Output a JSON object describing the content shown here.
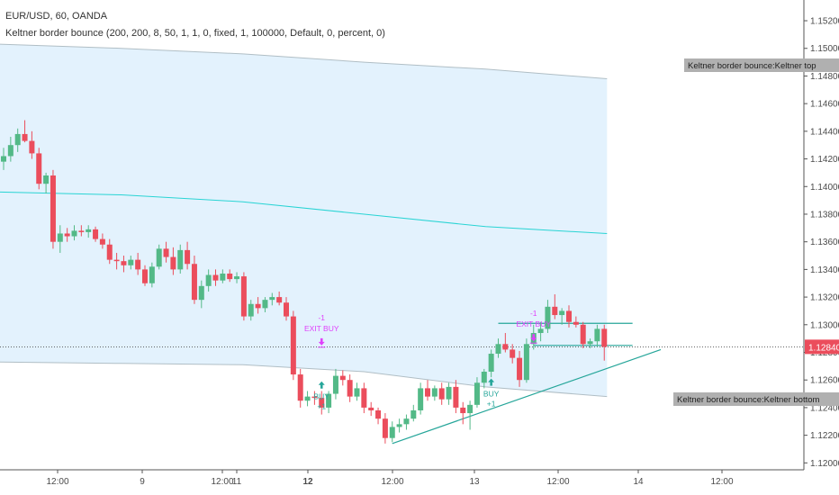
{
  "chart_data": {
    "type": "candlestick",
    "title": "EUR/USD, 60, OANDA",
    "subtitle": "Keltner border bounce (200, 200, 8, 50, 1, 1, 0, fixed, 1, 100000, Default, 0, percent, 0)",
    "ylim": [
      1.1195,
      1.1535
    ],
    "y_ticks": [
      "1.15200",
      "1.15000",
      "1.14800",
      "1.14600",
      "1.14400",
      "1.14200",
      "1.14000",
      "1.13800",
      "1.13600",
      "1.13400",
      "1.13200",
      "1.13000",
      "1.12800",
      "1.12600",
      "1.12400",
      "1.12200",
      "1.12000"
    ],
    "x_ticks": [
      "12:00",
      "9",
      "12:00",
      "11",
      "12",
      "12:00",
      "13",
      "12:00",
      "14",
      "12:00"
    ],
    "x_tick_bold": [
      false,
      false,
      false,
      false,
      true,
      false,
      false,
      false,
      false,
      false
    ],
    "current_price": "1.12840",
    "colors": {
      "up": "#53b987",
      "down": "#eb4d5c",
      "channel": "#29d4d4",
      "band_fill": "#e3f2fd",
      "band_line": "#b0bec5",
      "trend": "#26a69a",
      "buy": "#26a69a",
      "exit": "#e040fb",
      "price_tag": "#eb4d5c"
    },
    "candles": [
      {
        "o": 1.1418,
        "h": 1.1428,
        "l": 1.1412,
        "c": 1.1422
      },
      {
        "o": 1.1422,
        "h": 1.1436,
        "l": 1.1418,
        "c": 1.143
      },
      {
        "o": 1.143,
        "h": 1.1442,
        "l": 1.1425,
        "c": 1.1438
      },
      {
        "o": 1.1438,
        "h": 1.1448,
        "l": 1.1432,
        "c": 1.1433
      },
      {
        "o": 1.1433,
        "h": 1.144,
        "l": 1.142,
        "c": 1.1424
      },
      {
        "o": 1.1424,
        "h": 1.1428,
        "l": 1.1398,
        "c": 1.1402
      },
      {
        "o": 1.1402,
        "h": 1.141,
        "l": 1.1395,
        "c": 1.1408
      },
      {
        "o": 1.1408,
        "h": 1.1412,
        "l": 1.1355,
        "c": 1.136
      },
      {
        "o": 1.136,
        "h": 1.1372,
        "l": 1.1352,
        "c": 1.1366
      },
      {
        "o": 1.1366,
        "h": 1.137,
        "l": 1.136,
        "c": 1.1364
      },
      {
        "o": 1.1364,
        "h": 1.1372,
        "l": 1.1361,
        "c": 1.1368
      },
      {
        "o": 1.1368,
        "h": 1.1372,
        "l": 1.1364,
        "c": 1.1367
      },
      {
        "o": 1.1367,
        "h": 1.1372,
        "l": 1.1363,
        "c": 1.1369
      },
      {
        "o": 1.1369,
        "h": 1.1371,
        "l": 1.136,
        "c": 1.1362
      },
      {
        "o": 1.1362,
        "h": 1.1366,
        "l": 1.1355,
        "c": 1.1358
      },
      {
        "o": 1.1358,
        "h": 1.1362,
        "l": 1.1344,
        "c": 1.1347
      },
      {
        "o": 1.1347,
        "h": 1.1352,
        "l": 1.134,
        "c": 1.1346
      },
      {
        "o": 1.1346,
        "h": 1.135,
        "l": 1.1338,
        "c": 1.1343
      },
      {
        "o": 1.1343,
        "h": 1.135,
        "l": 1.134,
        "c": 1.1347
      },
      {
        "o": 1.1347,
        "h": 1.1352,
        "l": 1.1336,
        "c": 1.134
      },
      {
        "o": 1.134,
        "h": 1.1343,
        "l": 1.1328,
        "c": 1.133
      },
      {
        "o": 1.133,
        "h": 1.1345,
        "l": 1.1327,
        "c": 1.1342
      },
      {
        "o": 1.1342,
        "h": 1.1358,
        "l": 1.134,
        "c": 1.1355
      },
      {
        "o": 1.1355,
        "h": 1.136,
        "l": 1.1345,
        "c": 1.1349
      },
      {
        "o": 1.1349,
        "h": 1.1356,
        "l": 1.1336,
        "c": 1.134
      },
      {
        "o": 1.134,
        "h": 1.1358,
        "l": 1.1337,
        "c": 1.1354
      },
      {
        "o": 1.1354,
        "h": 1.136,
        "l": 1.134,
        "c": 1.1344
      },
      {
        "o": 1.1344,
        "h": 1.135,
        "l": 1.1315,
        "c": 1.1318
      },
      {
        "o": 1.1318,
        "h": 1.1332,
        "l": 1.1312,
        "c": 1.1328
      },
      {
        "o": 1.1328,
        "h": 1.134,
        "l": 1.1324,
        "c": 1.1336
      },
      {
        "o": 1.1336,
        "h": 1.134,
        "l": 1.1328,
        "c": 1.1332
      },
      {
        "o": 1.1332,
        "h": 1.134,
        "l": 1.133,
        "c": 1.1337
      },
      {
        "o": 1.1337,
        "h": 1.134,
        "l": 1.1331,
        "c": 1.1333
      },
      {
        "o": 1.1333,
        "h": 1.1338,
        "l": 1.133,
        "c": 1.1335
      },
      {
        "o": 1.1335,
        "h": 1.1338,
        "l": 1.1303,
        "c": 1.1306
      },
      {
        "o": 1.1306,
        "h": 1.1318,
        "l": 1.1303,
        "c": 1.1315
      },
      {
        "o": 1.1315,
        "h": 1.132,
        "l": 1.1308,
        "c": 1.1312
      },
      {
        "o": 1.1312,
        "h": 1.132,
        "l": 1.1309,
        "c": 1.1318
      },
      {
        "o": 1.1318,
        "h": 1.1323,
        "l": 1.1314,
        "c": 1.132
      },
      {
        "o": 1.132,
        "h": 1.1324,
        "l": 1.1314,
        "c": 1.1316
      },
      {
        "o": 1.1316,
        "h": 1.132,
        "l": 1.1303,
        "c": 1.1306
      },
      {
        "o": 1.1306,
        "h": 1.131,
        "l": 1.126,
        "c": 1.1264
      },
      {
        "o": 1.1264,
        "h": 1.1268,
        "l": 1.124,
        "c": 1.1245
      },
      {
        "o": 1.1245,
        "h": 1.1252,
        "l": 1.1241,
        "c": 1.1248
      },
      {
        "o": 1.1248,
        "h": 1.1252,
        "l": 1.1242,
        "c": 1.1247
      },
      {
        "o": 1.1247,
        "h": 1.1252,
        "l": 1.1235,
        "c": 1.124
      },
      {
        "o": 1.124,
        "h": 1.1252,
        "l": 1.1236,
        "c": 1.125
      },
      {
        "o": 1.125,
        "h": 1.1268,
        "l": 1.1246,
        "c": 1.1263
      },
      {
        "o": 1.1263,
        "h": 1.1267,
        "l": 1.1256,
        "c": 1.126
      },
      {
        "o": 1.126,
        "h": 1.1264,
        "l": 1.1244,
        "c": 1.1248
      },
      {
        "o": 1.1248,
        "h": 1.1258,
        "l": 1.1245,
        "c": 1.1254
      },
      {
        "o": 1.1254,
        "h": 1.1258,
        "l": 1.1236,
        "c": 1.124
      },
      {
        "o": 1.124,
        "h": 1.1244,
        "l": 1.1234,
        "c": 1.1238
      },
      {
        "o": 1.1238,
        "h": 1.124,
        "l": 1.1228,
        "c": 1.1232
      },
      {
        "o": 1.1232,
        "h": 1.1236,
        "l": 1.1214,
        "c": 1.1218
      },
      {
        "o": 1.1218,
        "h": 1.123,
        "l": 1.1215,
        "c": 1.1226
      },
      {
        "o": 1.1226,
        "h": 1.1232,
        "l": 1.1222,
        "c": 1.1228
      },
      {
        "o": 1.1228,
        "h": 1.1235,
        "l": 1.1224,
        "c": 1.1232
      },
      {
        "o": 1.1232,
        "h": 1.1242,
        "l": 1.123,
        "c": 1.1238
      },
      {
        "o": 1.1238,
        "h": 1.1258,
        "l": 1.1235,
        "c": 1.1254
      },
      {
        "o": 1.1254,
        "h": 1.126,
        "l": 1.1245,
        "c": 1.1248
      },
      {
        "o": 1.1248,
        "h": 1.1256,
        "l": 1.1245,
        "c": 1.1254
      },
      {
        "o": 1.1254,
        "h": 1.1258,
        "l": 1.1242,
        "c": 1.1246
      },
      {
        "o": 1.1246,
        "h": 1.1258,
        "l": 1.1242,
        "c": 1.1255
      },
      {
        "o": 1.1255,
        "h": 1.126,
        "l": 1.1236,
        "c": 1.124
      },
      {
        "o": 1.124,
        "h": 1.1244,
        "l": 1.1228,
        "c": 1.1236
      },
      {
        "o": 1.1236,
        "h": 1.1245,
        "l": 1.1224,
        "c": 1.1242
      },
      {
        "o": 1.1242,
        "h": 1.1262,
        "l": 1.124,
        "c": 1.1258
      },
      {
        "o": 1.1258,
        "h": 1.1268,
        "l": 1.1254,
        "c": 1.1266
      },
      {
        "o": 1.1266,
        "h": 1.1282,
        "l": 1.1262,
        "c": 1.1279
      },
      {
        "o": 1.1279,
        "h": 1.129,
        "l": 1.1276,
        "c": 1.1286
      },
      {
        "o": 1.1286,
        "h": 1.1294,
        "l": 1.128,
        "c": 1.1282
      },
      {
        "o": 1.1282,
        "h": 1.1286,
        "l": 1.1272,
        "c": 1.1276
      },
      {
        "o": 1.1276,
        "h": 1.1281,
        "l": 1.1255,
        "c": 1.126
      },
      {
        "o": 1.126,
        "h": 1.129,
        "l": 1.1258,
        "c": 1.1286
      },
      {
        "o": 1.1286,
        "h": 1.13,
        "l": 1.1282,
        "c": 1.1294
      },
      {
        "o": 1.1294,
        "h": 1.1302,
        "l": 1.1288,
        "c": 1.1297
      },
      {
        "o": 1.1297,
        "h": 1.1318,
        "l": 1.1294,
        "c": 1.1313
      },
      {
        "o": 1.1313,
        "h": 1.1322,
        "l": 1.1304,
        "c": 1.1307
      },
      {
        "o": 1.1307,
        "h": 1.1312,
        "l": 1.13,
        "c": 1.131
      },
      {
        "o": 1.131,
        "h": 1.1314,
        "l": 1.1298,
        "c": 1.1302
      },
      {
        "o": 1.1302,
        "h": 1.1306,
        "l": 1.1298,
        "c": 1.13
      },
      {
        "o": 1.13,
        "h": 1.1302,
        "l": 1.1283,
        "c": 1.1286
      },
      {
        "o": 1.1286,
        "h": 1.129,
        "l": 1.1283,
        "c": 1.1288
      },
      {
        "o": 1.1288,
        "h": 1.13,
        "l": 1.1284,
        "c": 1.1297
      },
      {
        "o": 1.1297,
        "h": 1.13,
        "l": 1.1274,
        "c": 1.1284
      }
    ],
    "keltner_top": [
      1.1503,
      1.15,
      1.1496,
      1.149,
      1.1485,
      1.1478
    ],
    "keltner_mid": [
      1.1396,
      1.1394,
      1.1389,
      1.138,
      1.1371,
      1.1366
    ],
    "keltner_bottom": [
      1.1273,
      1.1272,
      1.1271,
      1.1266,
      1.1255,
      1.1248
    ],
    "band_end_candle": 85,
    "trendline": {
      "from": [
        55,
        1.1214
      ],
      "to": [
        93,
        1.1282
      ]
    },
    "level_lines": [
      {
        "price": 1.1301,
        "from": 70,
        "to": 89
      },
      {
        "price": 1.1285,
        "from": 75,
        "to": 89
      }
    ],
    "signals": [
      {
        "kind": "exit",
        "candle": 45,
        "price": 1.1285,
        "labels": [
          "-1",
          "EXIT BUY"
        ]
      },
      {
        "kind": "buy",
        "candle": 45,
        "price": 1.1259,
        "labels": [
          "BUY",
          "+1"
        ]
      },
      {
        "kind": "buy",
        "candle": 69,
        "price": 1.1261,
        "labels": [
          "BUY",
          "+1"
        ]
      },
      {
        "kind": "exit",
        "candle": 75,
        "price": 1.1288,
        "labels": [
          "-1",
          "EXIT BUY"
        ]
      }
    ],
    "band_labels": {
      "top": "Keltner border bounce:Keltner top",
      "bottom": "Keltner border bounce:Keltner bottom"
    }
  }
}
